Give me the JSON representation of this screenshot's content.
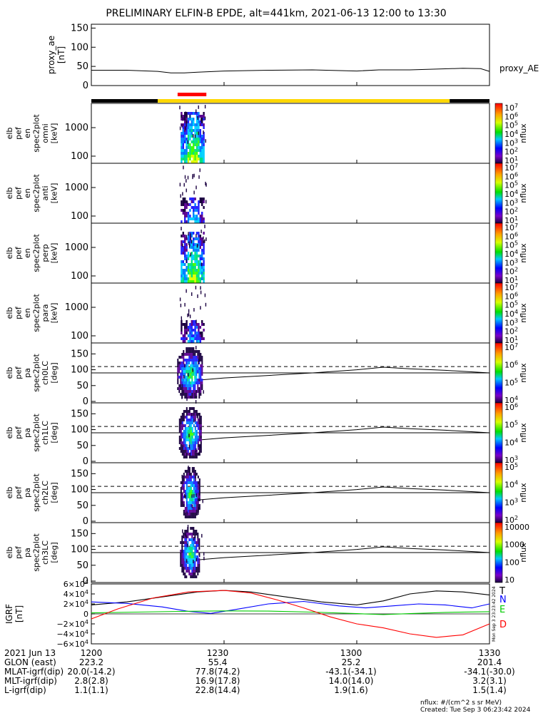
{
  "chart_data": {
    "type": "heatmap",
    "title": "PRELIMINARY ELFIN-B EPDE, alt=441km, 2021-06-13 12:00 to 13:30",
    "time_ticks": [
      "1200",
      "1230",
      "1300",
      "1330"
    ],
    "time_range_minutes": [
      0,
      90
    ],
    "proxy_ae": {
      "ylabel": [
        "proxy_ae",
        "[nT]"
      ],
      "legend": "proxy_AE",
      "yticks": [
        "150",
        "100",
        "50",
        "0"
      ],
      "ylim": [
        0,
        160
      ],
      "t": [
        0,
        8,
        15,
        18,
        21,
        24,
        30,
        40,
        50,
        60,
        65,
        72,
        78,
        84,
        88,
        90
      ],
      "v": [
        40,
        40,
        37,
        33,
        33,
        35,
        38,
        40,
        41,
        38,
        41,
        41,
        43,
        45,
        44,
        37
      ]
    },
    "status_bar": {
      "segments": [
        {
          "t0": 0,
          "t1": 15,
          "color": "#000000"
        },
        {
          "t0": 15,
          "t1": 81,
          "color": "#ffd700"
        },
        {
          "t0": 81,
          "t1": 90,
          "color": "#000000"
        }
      ],
      "science_zone": {
        "t0": 19.5,
        "t1": 26,
        "color": "#ff0000"
      }
    },
    "energy_panels": [
      {
        "ylabel": [
          "elb",
          "pef",
          "en",
          "spec2plot",
          "omni",
          "[keV]"
        ],
        "yticks": [
          "1000",
          "100"
        ],
        "cbar_ticks": [
          "10^7",
          "10^6",
          "10^5",
          "10^4",
          "10^3",
          "10^2",
          "10^1"
        ],
        "cbar_label": "nflux",
        "strength": 1.0
      },
      {
        "ylabel": [
          "elb",
          "pef",
          "en",
          "spec2plot",
          "anti",
          "[keV]"
        ],
        "yticks": [
          "1000",
          "100"
        ],
        "cbar_ticks": [
          "10^7",
          "10^6",
          "10^5",
          "10^4",
          "10^3",
          "10^2",
          "10^1"
        ],
        "cbar_label": "nflux",
        "strength": 0.5
      },
      {
        "ylabel": [
          "elb",
          "pef",
          "en",
          "spec2plot",
          "perp",
          "[keV]"
        ],
        "yticks": [
          "1000",
          "100"
        ],
        "cbar_ticks": [
          "10^7",
          "10^6",
          "10^5",
          "10^4",
          "10^3",
          "10^2",
          "10^1"
        ],
        "cbar_label": "nflux",
        "strength": 1.0
      },
      {
        "ylabel": [
          "elb",
          "pef",
          "en",
          "spec2plot",
          "para",
          "[keV]"
        ],
        "yticks": [
          "1000",
          "100"
        ],
        "cbar_ticks": [
          "10^7",
          "10^6",
          "10^5",
          "10^4",
          "10^3",
          "10^2",
          "10^1"
        ],
        "cbar_label": "nflux",
        "strength": 0.45
      }
    ],
    "pitch_panels": [
      {
        "ylabel": [
          "elb",
          "pef",
          "pa",
          "spec2plot",
          "ch0LC",
          "[deg]"
        ],
        "yticks": [
          "150",
          "100",
          "50",
          "0"
        ],
        "cbar_ticks": [
          "10^7",
          "10^6",
          "10^5",
          "10^4"
        ],
        "cbar_label": "nflux",
        "width": 1.0
      },
      {
        "ylabel": [
          "elb",
          "pef",
          "pa",
          "spec2plot",
          "ch1LC",
          "[deg]"
        ],
        "yticks": [
          "150",
          "100",
          "50",
          "0"
        ],
        "cbar_ticks": [
          "10^6",
          "10^5",
          "10^4",
          "10^3"
        ],
        "cbar_label": "nflux",
        "width": 0.75
      },
      {
        "ylabel": [
          "elb",
          "pef",
          "pa",
          "spec2plot",
          "ch2LC",
          "[deg]"
        ],
        "yticks": [
          "150",
          "100",
          "50",
          "0"
        ],
        "cbar_ticks": [
          "10^5",
          "10^4",
          "10^3",
          "10^2"
        ],
        "cbar_label": "nflux",
        "width": 0.55
      },
      {
        "ylabel": [
          "elb",
          "pef",
          "pa",
          "spec2plot",
          "ch3LC",
          "[deg]"
        ],
        "yticks": [
          "150",
          "100",
          "50",
          "0"
        ],
        "cbar_ticks": [
          "10000",
          "1000",
          "100",
          "10"
        ],
        "cbar_label": "nflux",
        "width": 0.6
      }
    ],
    "pitch_lines": {
      "dashed_deg": 110,
      "solid_deg": 90,
      "t": [
        24,
        30,
        40,
        50,
        60,
        66,
        72,
        80,
        90
      ],
      "lc_deg": [
        67,
        74,
        82,
        90,
        100,
        108,
        103,
        98,
        90
      ]
    },
    "igrf": {
      "ylabel": [
        "IGRF",
        "[nT]"
      ],
      "yticks": [
        "6×10^4",
        "4×10^4",
        "2×10^4",
        "0",
        "−2×10^4",
        "−4×10^4",
        "−6×10^4"
      ],
      "ylim": [
        -60000,
        60000
      ],
      "series": [
        {
          "name": "T",
          "color": "#000000",
          "t": [
            0,
            8,
            16,
            24,
            30,
            36,
            44,
            52,
            60,
            66,
            72,
            78,
            84,
            90
          ],
          "v": [
            18000,
            24000,
            34000,
            44000,
            47000,
            44000,
            34000,
            24000,
            18000,
            26000,
            40000,
            46000,
            44000,
            38000
          ]
        },
        {
          "name": "N",
          "color": "#0000ff",
          "t": [
            0,
            8,
            16,
            22,
            27,
            32,
            40,
            48,
            56,
            62,
            68,
            74,
            80,
            86,
            90
          ],
          "v": [
            24000,
            21000,
            14000,
            5000,
            1000,
            8000,
            20000,
            25000,
            16000,
            12000,
            16000,
            20000,
            18000,
            12000,
            20000
          ]
        },
        {
          "name": "E",
          "color": "#00cc00",
          "t": [
            0,
            10,
            20,
            30,
            40,
            50,
            60,
            66,
            72,
            80,
            90
          ],
          "v": [
            2000,
            3500,
            5000,
            6000,
            5500,
            3500,
            500,
            -1500,
            500,
            3000,
            4500
          ]
        },
        {
          "name": "D",
          "color": "#ff0000",
          "t": [
            0,
            6,
            14,
            22,
            30,
            36,
            42,
            48,
            54,
            60,
            66,
            72,
            78,
            84,
            90
          ],
          "v": [
            -10000,
            10000,
            32000,
            44000,
            47000,
            42000,
            28000,
            12000,
            -6000,
            -20000,
            -28000,
            -40000,
            -47000,
            -42000,
            -20000
          ]
        }
      ]
    }
  },
  "footer": {
    "rows": [
      {
        "label": "2021 Jun 13",
        "values": [
          "1200",
          "1230",
          "1300",
          "1330"
        ]
      },
      {
        "label": "GLON (east)",
        "values": [
          "223.2",
          "55.4",
          "25.2",
          "201.4"
        ]
      },
      {
        "label": "MLAT-igrf(dip)",
        "values": [
          "20.0(-14.2)",
          "77.8(74.2)",
          "-43.1(-34.1)",
          "-34.1(-30.0)"
        ]
      },
      {
        "label": "MLT-igrf(dip)",
        "values": [
          "2.8(2.8)",
          "16.9(17.8)",
          "14.0(14.0)",
          "3.2(3.1)"
        ]
      },
      {
        "label": "L-igrf(dip)",
        "values": [
          "1.1(1.1)",
          "22.8(14.4)",
          "1.9(1.6)",
          "1.5(1.4)"
        ]
      }
    ],
    "units_note": "nflux: #/(cm^2 s sr MeV)",
    "created": "Created: Tue Sep  3 06:23:42 2024",
    "side_stamp": "Mon Sep  3 23:23:42 2024"
  }
}
